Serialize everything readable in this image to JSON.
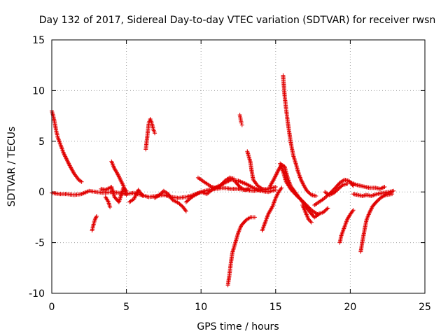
{
  "chart_data": {
    "type": "scatter",
    "title": "Day 132 of 2017, Sidereal Day-to-day VTEC variation (SDTVAR) for receiver rwsn",
    "xlabel": "GPS time / hours",
    "ylabel": "SDTVAR / TECUs",
    "xlim": [
      0,
      25
    ],
    "ylim": [
      -10,
      15
    ],
    "xticks": [
      "0",
      "5",
      "10",
      "15",
      "20",
      "25"
    ],
    "yticks": [
      "-10",
      "-5",
      "0",
      "5",
      "10",
      "15"
    ],
    "grid": true,
    "marker": "+",
    "color": "#e00000",
    "series": [
      {
        "name": "SDTVAR",
        "segments": [
          [
            [
              0.0,
              -0.1
            ],
            [
              0.5,
              -0.2
            ],
            [
              1.0,
              -0.2
            ],
            [
              1.5,
              -0.3
            ],
            [
              2.0,
              -0.2
            ],
            [
              2.5,
              0.1
            ],
            [
              3.0,
              0.0
            ],
            [
              3.5,
              -0.1
            ],
            [
              4.0,
              0.0
            ],
            [
              4.5,
              -0.1
            ],
            [
              5.0,
              -0.2
            ],
            [
              5.5,
              -0.1
            ],
            [
              6.0,
              -0.3
            ],
            [
              6.5,
              -0.5
            ],
            [
              7.0,
              -0.4
            ],
            [
              7.5,
              -0.3
            ],
            [
              8.0,
              -0.5
            ],
            [
              8.5,
              -0.6
            ],
            [
              9.0,
              -0.5
            ],
            [
              9.5,
              -0.3
            ],
            [
              10.0,
              0.0
            ],
            [
              10.5,
              0.2
            ],
            [
              11.0,
              0.3
            ],
            [
              11.5,
              0.4
            ],
            [
              12.0,
              0.3
            ],
            [
              12.5,
              0.3
            ],
            [
              13.0,
              0.2
            ],
            [
              13.5,
              0.1
            ],
            [
              14.0,
              0.2
            ],
            [
              14.5,
              0.3
            ],
            [
              15.0,
              0.5
            ]
          ],
          [
            [
              0.0,
              8.0
            ],
            [
              0.1,
              7.5
            ],
            [
              0.2,
              6.8
            ],
            [
              0.3,
              6.0
            ],
            [
              0.4,
              5.4
            ],
            [
              0.6,
              4.6
            ],
            [
              0.8,
              3.8
            ],
            [
              1.0,
              3.2
            ],
            [
              1.2,
              2.6
            ],
            [
              1.5,
              1.8
            ],
            [
              1.8,
              1.2
            ],
            [
              2.0,
              1.0
            ]
          ],
          [
            [
              2.7,
              -3.8
            ],
            [
              2.8,
              -3.2
            ],
            [
              2.9,
              -2.7
            ],
            [
              3.0,
              -2.4
            ]
          ],
          [
            [
              3.3,
              0.3
            ],
            [
              3.6,
              0.2
            ],
            [
              4.0,
              0.5
            ],
            [
              4.2,
              -0.5
            ],
            [
              4.5,
              -1.0
            ],
            [
              4.8,
              0.4
            ],
            [
              5.0,
              0.1
            ]
          ],
          [
            [
              3.6,
              -0.5
            ],
            [
              3.8,
              -1.0
            ],
            [
              3.9,
              -1.5
            ]
          ],
          [
            [
              4.0,
              3.0
            ],
            [
              4.2,
              2.3
            ],
            [
              4.4,
              1.8
            ],
            [
              4.6,
              1.2
            ],
            [
              4.8,
              0.6
            ],
            [
              5.0,
              -0.3
            ]
          ],
          [
            [
              5.2,
              -1.0
            ],
            [
              5.5,
              -0.7
            ],
            [
              5.8,
              0.2
            ],
            [
              6.1,
              -0.4
            ]
          ],
          [
            [
              6.3,
              4.2
            ],
            [
              6.4,
              5.5
            ],
            [
              6.5,
              6.8
            ],
            [
              6.6,
              7.2
            ],
            [
              6.7,
              6.8
            ],
            [
              6.8,
              6.2
            ],
            [
              6.9,
              5.8
            ]
          ],
          [
            [
              6.9,
              -0.6
            ],
            [
              7.2,
              -0.3
            ],
            [
              7.5,
              0.1
            ],
            [
              7.8,
              -0.2
            ],
            [
              8.1,
              -0.8
            ],
            [
              8.5,
              -1.1
            ],
            [
              8.8,
              -1.5
            ],
            [
              9.0,
              -1.9
            ]
          ],
          [
            [
              9.0,
              -1.0
            ],
            [
              9.3,
              -0.6
            ],
            [
              9.6,
              -0.3
            ],
            [
              10.0,
              0.0
            ],
            [
              10.4,
              -0.2
            ],
            [
              10.8,
              0.3
            ],
            [
              11.2,
              0.6
            ],
            [
              11.6,
              0.9
            ],
            [
              12.0,
              1.2
            ],
            [
              12.5,
              1.1
            ],
            [
              13.0,
              0.8
            ],
            [
              13.5,
              0.4
            ],
            [
              14.0,
              0.1
            ],
            [
              14.5,
              0.0
            ],
            [
              15.0,
              0.2
            ]
          ],
          [
            [
              9.8,
              1.4
            ],
            [
              10.1,
              1.1
            ],
            [
              10.4,
              0.8
            ],
            [
              10.7,
              0.5
            ],
            [
              11.0,
              0.4
            ],
            [
              11.3,
              0.6
            ],
            [
              11.6,
              1.1
            ],
            [
              11.9,
              1.4
            ],
            [
              12.2,
              1.3
            ]
          ],
          [
            [
              12.3,
              1.0
            ],
            [
              12.6,
              0.5
            ],
            [
              12.9,
              0.2
            ],
            [
              13.2,
              0.3
            ]
          ],
          [
            [
              12.6,
              7.6
            ],
            [
              12.65,
              7.2
            ],
            [
              12.7,
              6.8
            ],
            [
              12.75,
              6.6
            ]
          ],
          [
            [
              11.8,
              -9.2
            ],
            [
              11.9,
              -8.2
            ],
            [
              12.0,
              -7.0
            ],
            [
              12.1,
              -6.0
            ],
            [
              12.3,
              -5.0
            ],
            [
              12.5,
              -4.0
            ],
            [
              12.7,
              -3.3
            ],
            [
              13.0,
              -2.8
            ],
            [
              13.3,
              -2.5
            ],
            [
              13.6,
              -2.5
            ]
          ],
          [
            [
              13.1,
              4.0
            ],
            [
              13.3,
              3.0
            ],
            [
              13.4,
              2.0
            ],
            [
              13.5,
              1.2
            ],
            [
              13.8,
              0.6
            ],
            [
              14.1,
              0.3
            ],
            [
              14.4,
              0.2
            ]
          ],
          [
            [
              14.1,
              -3.8
            ],
            [
              14.3,
              -3.0
            ],
            [
              14.5,
              -2.2
            ],
            [
              14.8,
              -1.4
            ],
            [
              15.0,
              -0.6
            ],
            [
              15.2,
              0.0
            ],
            [
              15.4,
              0.4
            ]
          ],
          [
            [
              14.6,
              0.5
            ],
            [
              14.9,
              1.3
            ],
            [
              15.2,
              2.2
            ],
            [
              15.4,
              2.7
            ],
            [
              15.6,
              2.5
            ],
            [
              15.8,
              1.4
            ],
            [
              16.0,
              0.6
            ],
            [
              16.3,
              0.0
            ],
            [
              16.6,
              -0.6
            ],
            [
              17.0,
              -1.2
            ],
            [
              17.4,
              -1.8
            ],
            [
              17.8,
              -2.2
            ],
            [
              18.2,
              -2.0
            ],
            [
              18.5,
              -1.6
            ]
          ],
          [
            [
              15.3,
              2.8
            ],
            [
              15.5,
              2.0
            ],
            [
              15.7,
              1.0
            ],
            [
              16.0,
              0.3
            ],
            [
              16.3,
              -0.2
            ],
            [
              16.7,
              -0.8
            ],
            [
              17.0,
              -1.4
            ],
            [
              17.3,
              -2.0
            ],
            [
              17.6,
              -2.5
            ],
            [
              17.9,
              -2.2
            ]
          ],
          [
            [
              15.5,
              11.5
            ],
            [
              15.55,
              10.5
            ],
            [
              15.6,
              9.5
            ],
            [
              15.7,
              8.2
            ],
            [
              15.8,
              7.0
            ],
            [
              15.9,
              6.0
            ],
            [
              16.0,
              5.0
            ],
            [
              16.1,
              4.2
            ],
            [
              16.2,
              3.5
            ],
            [
              16.35,
              2.8
            ],
            [
              16.5,
              2.0
            ],
            [
              16.7,
              1.2
            ],
            [
              16.9,
              0.6
            ],
            [
              17.1,
              0.1
            ],
            [
              17.4,
              -0.3
            ],
            [
              17.7,
              -0.4
            ]
          ],
          [
            [
              16.8,
              -1.3
            ],
            [
              17.0,
              -2.0
            ],
            [
              17.2,
              -2.7
            ],
            [
              17.4,
              -3.0
            ]
          ],
          [
            [
              17.6,
              -1.3
            ],
            [
              17.9,
              -1.0
            ],
            [
              18.2,
              -0.7
            ],
            [
              18.6,
              -0.2
            ],
            [
              19.0,
              0.4
            ],
            [
              19.3,
              0.9
            ],
            [
              19.6,
              1.2
            ],
            [
              19.9,
              1.1
            ],
            [
              20.2,
              0.6
            ]
          ],
          [
            [
              18.3,
              0.0
            ],
            [
              18.6,
              -0.3
            ],
            [
              18.9,
              -0.1
            ],
            [
              19.2,
              0.3
            ],
            [
              19.5,
              0.7
            ],
            [
              19.8,
              0.8
            ]
          ],
          [
            [
              19.3,
              -5.0
            ],
            [
              19.4,
              -4.3
            ],
            [
              19.6,
              -3.5
            ],
            [
              19.8,
              -2.7
            ],
            [
              20.0,
              -2.2
            ],
            [
              20.2,
              -1.8
            ]
          ],
          [
            [
              20.1,
              0.9
            ],
            [
              20.4,
              0.7
            ],
            [
              20.7,
              0.6
            ],
            [
              21.0,
              0.5
            ],
            [
              21.3,
              0.4
            ],
            [
              21.7,
              0.4
            ],
            [
              22.0,
              0.3
            ],
            [
              22.3,
              0.5
            ]
          ],
          [
            [
              20.2,
              -0.2
            ],
            [
              20.5,
              -0.3
            ],
            [
              20.8,
              -0.4
            ],
            [
              21.1,
              -0.3
            ],
            [
              21.4,
              -0.4
            ],
            [
              21.8,
              -0.2
            ],
            [
              22.2,
              -0.1
            ],
            [
              22.6,
              0.0
            ],
            [
              22.9,
              0.1
            ]
          ],
          [
            [
              20.7,
              -5.9
            ],
            [
              20.8,
              -5.0
            ],
            [
              20.9,
              -4.2
            ],
            [
              21.0,
              -3.4
            ],
            [
              21.1,
              -2.7
            ],
            [
              21.3,
              -2.0
            ],
            [
              21.5,
              -1.4
            ],
            [
              21.8,
              -0.9
            ],
            [
              22.1,
              -0.5
            ],
            [
              22.4,
              -0.3
            ],
            [
              22.8,
              -0.2
            ]
          ]
        ]
      }
    ]
  }
}
